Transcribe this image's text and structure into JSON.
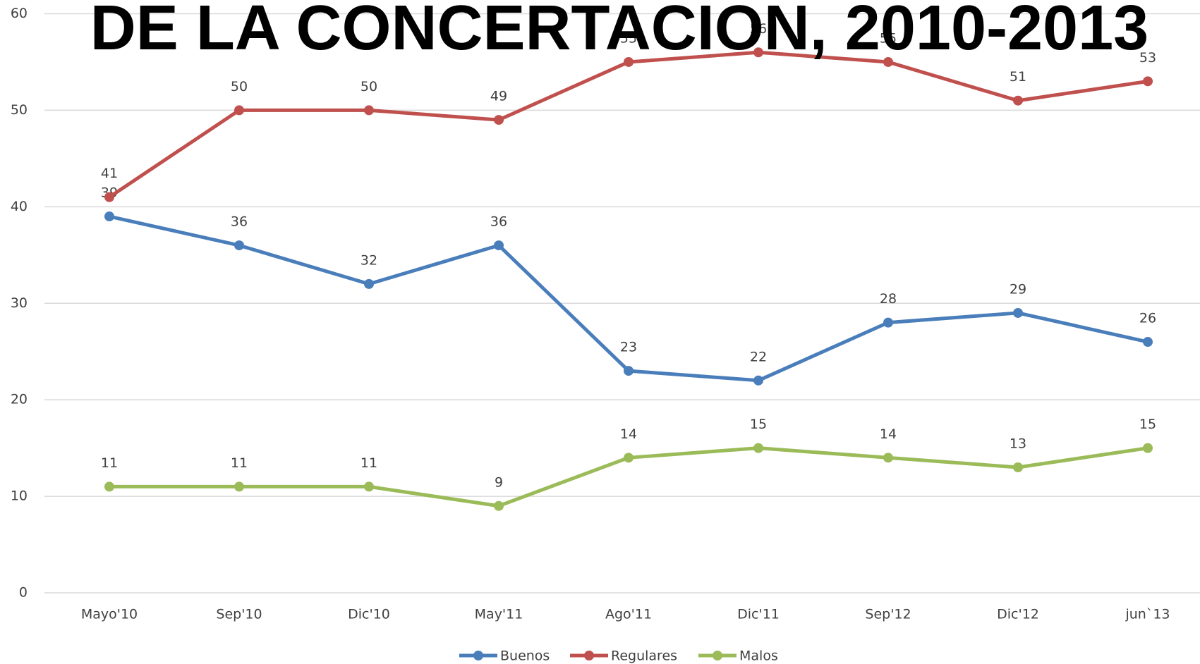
{
  "chart_data": {
    "type": "line",
    "title": "DE LA CONCERTACION, 2010-2013",
    "categories": [
      "Mayo'10",
      "Sep'10",
      "Dic'10",
      "May'11",
      "Ago'11",
      "Dic'11",
      "Sep'12",
      "Dic'12",
      "jun`13"
    ],
    "series": [
      {
        "name": "Buenos",
        "color": "#4a7ebb",
        "values": [
          39,
          36,
          32,
          36,
          23,
          22,
          28,
          29,
          26
        ]
      },
      {
        "name": "Regulares",
        "color": "#c0504d",
        "values": [
          41,
          50,
          50,
          49,
          55,
          56,
          55,
          51,
          53
        ]
      },
      {
        "name": "Malos",
        "color": "#9bbb59",
        "values": [
          11,
          11,
          11,
          9,
          14,
          15,
          14,
          13,
          15
        ]
      }
    ],
    "ylim": [
      0,
      60
    ],
    "yticks": [
      0,
      10,
      20,
      30,
      40,
      50,
      60
    ],
    "grid": true,
    "legend": "bottom"
  }
}
